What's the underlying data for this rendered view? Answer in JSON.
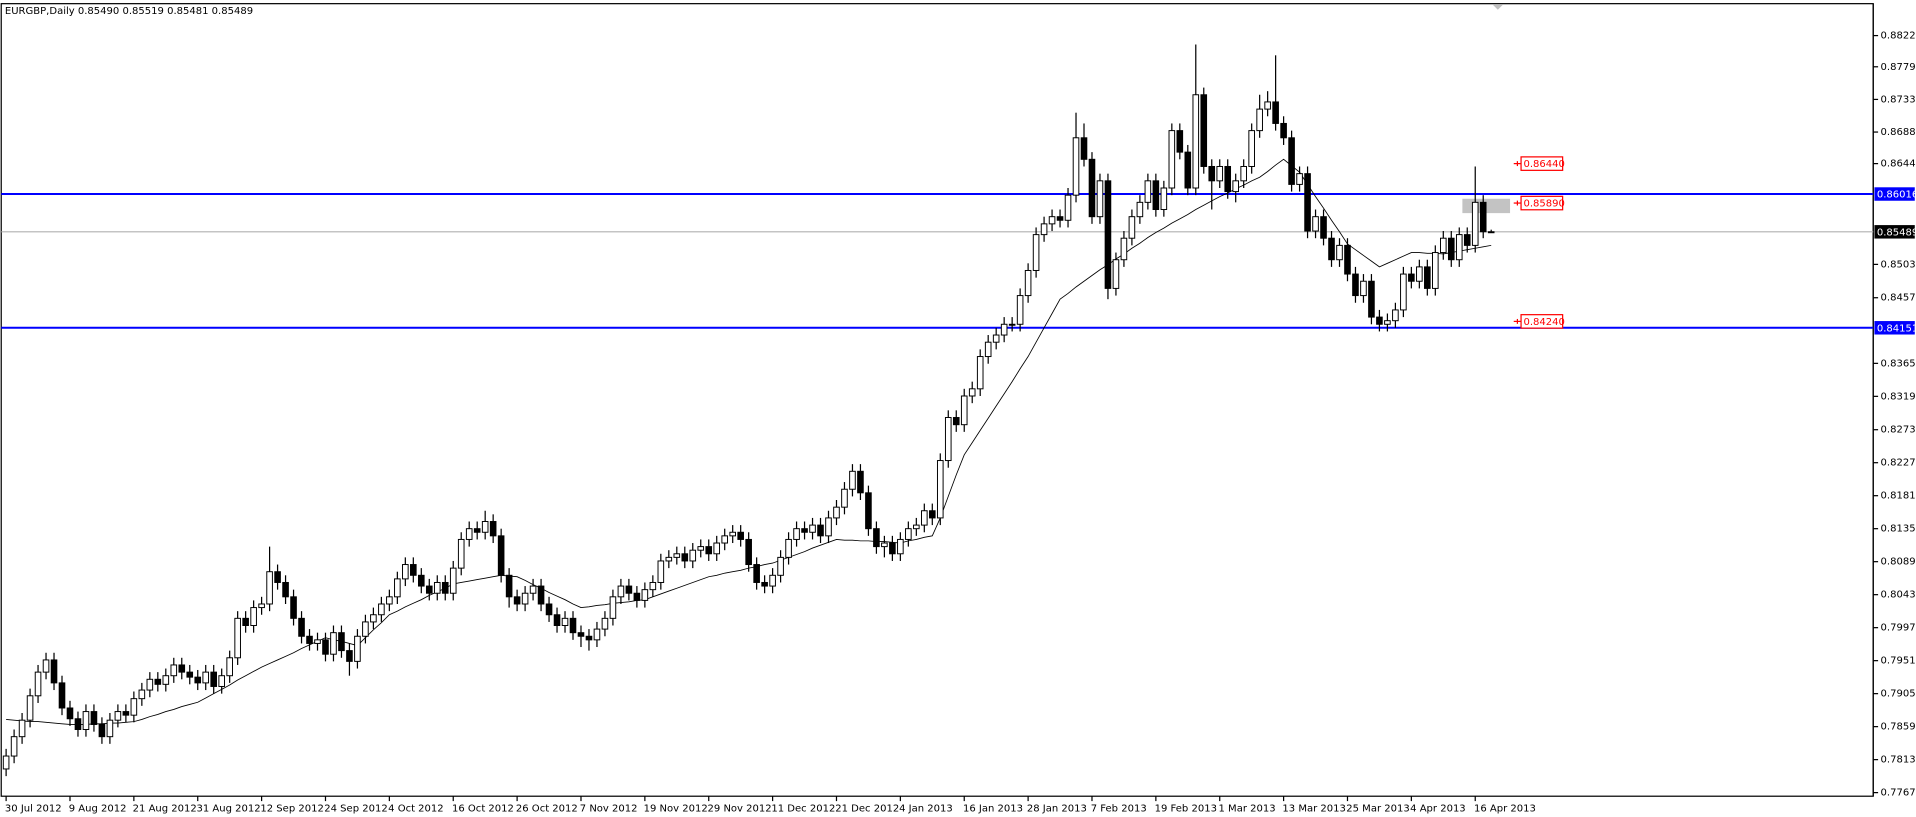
{
  "chart_data": {
    "type": "candlestick",
    "title": "EURGBP,Daily  0.85490 0.85519 0.85481 0.85489",
    "categories": [
      "30 Jul 2012",
      null,
      null,
      null,
      null,
      null,
      null,
      null,
      "9 Aug 2012",
      null,
      null,
      null,
      null,
      null,
      null,
      null,
      "21 Aug 2012",
      null,
      null,
      null,
      null,
      null,
      null,
      null,
      "31 Aug 2012",
      null,
      null,
      null,
      null,
      null,
      null,
      null,
      "12 Sep 2012",
      null,
      null,
      null,
      null,
      null,
      null,
      null,
      "24 Sep 2012",
      null,
      null,
      null,
      null,
      null,
      null,
      null,
      "4 Oct 2012",
      null,
      null,
      null,
      null,
      null,
      null,
      null,
      "16 Oct 2012",
      null,
      null,
      null,
      null,
      null,
      null,
      null,
      "26 Oct 2012",
      null,
      null,
      null,
      null,
      null,
      null,
      null,
      "7 Nov 2012",
      null,
      null,
      null,
      null,
      null,
      null,
      null,
      "19 Nov 2012",
      null,
      null,
      null,
      null,
      null,
      null,
      null,
      "29 Nov 2012",
      null,
      null,
      null,
      null,
      null,
      null,
      null,
      "11 Dec 2012",
      null,
      null,
      null,
      null,
      null,
      null,
      null,
      "21 Dec 2012",
      null,
      null,
      null,
      null,
      null,
      null,
      null,
      "4 Jan 2013",
      null,
      null,
      null,
      null,
      null,
      null,
      null,
      "16 Jan 2013",
      null,
      null,
      null,
      null,
      null,
      null,
      null,
      "28 Jan 2013",
      null,
      null,
      null,
      null,
      null,
      null,
      null,
      "7 Feb 2013",
      null,
      null,
      null,
      null,
      null,
      null,
      null,
      "19 Feb 2013",
      null,
      null,
      null,
      null,
      null,
      null,
      null,
      "1 Mar 2013",
      null,
      null,
      null,
      null,
      null,
      null,
      null,
      "13 Mar 2013",
      null,
      null,
      null,
      null,
      null,
      null,
      null,
      "25 Mar 2013",
      null,
      null,
      null,
      null,
      null,
      null,
      null,
      "4 Apr 2013",
      null,
      null,
      null,
      null,
      null,
      null,
      null,
      "16 Apr 2013",
      null,
      null
    ],
    "open": [
      0.78,
      0.7818,
      0.7845,
      0.7868,
      0.7902,
      0.7935,
      0.7952,
      0.792,
      0.7885,
      0.787,
      0.7855,
      0.788,
      0.7862,
      0.7845,
      0.7868,
      0.788,
      0.7875,
      0.7898,
      0.791,
      0.7925,
      0.7918,
      0.793,
      0.7945,
      0.7935,
      0.7928,
      0.792,
      0.7935,
      0.7915,
      0.793,
      0.7955,
      0.801,
      0.8,
      0.8025,
      0.803,
      0.8075,
      0.806,
      0.804,
      0.801,
      0.7985,
      0.7975,
      0.798,
      0.796,
      0.799,
      0.7965,
      0.795,
      0.7985,
      0.8005,
      0.8015,
      0.803,
      0.804,
      0.8065,
      0.8085,
      0.807,
      0.8055,
      0.8045,
      0.806,
      0.8045,
      0.808,
      0.812,
      0.8135,
      0.813,
      0.8145,
      0.8125,
      0.807,
      0.804,
      0.803,
      0.8045,
      0.8055,
      0.803,
      0.8015,
      0.8,
      0.801,
      0.799,
      0.7985,
      0.798,
      0.7995,
      0.801,
      0.804,
      0.8055,
      0.8045,
      0.8035,
      0.805,
      0.806,
      0.809,
      0.8095,
      0.81,
      0.809,
      0.8105,
      0.811,
      0.81,
      0.8115,
      0.8125,
      0.813,
      0.812,
      0.8085,
      0.806,
      0.8055,
      0.807,
      0.8095,
      0.812,
      0.8135,
      0.813,
      0.814,
      0.8125,
      0.815,
      0.8165,
      0.819,
      0.8215,
      0.8185,
      0.8135,
      0.811,
      0.8115,
      0.81,
      0.812,
      0.8135,
      0.814,
      0.816,
      0.815,
      0.823,
      0.829,
      0.828,
      0.832,
      0.833,
      0.8375,
      0.8395,
      0.8405,
      0.842,
      0.842,
      0.846,
      0.8495,
      0.8545,
      0.856,
      0.857,
      0.8565,
      0.86,
      0.868,
      0.865,
      0.857,
      0.862,
      0.847,
      0.851,
      0.854,
      0.857,
      0.859,
      0.862,
      0.858,
      0.861,
      0.869,
      0.866,
      0.861,
      0.874,
      0.864,
      0.862,
      0.864,
      0.8605,
      0.862,
      0.864,
      0.869,
      0.872,
      0.873,
      0.87,
      0.868,
      0.8615,
      0.863,
      0.855,
      0.857,
      0.854,
      0.851,
      0.853,
      0.849,
      0.846,
      0.848,
      0.843,
      0.842,
      0.8425,
      0.844,
      0.849,
      0.848,
      0.85,
      0.847,
      0.852,
      0.854,
      0.851,
      0.8545,
      0.853,
      0.859,
      0.8549
    ],
    "high": [
      0.7828,
      0.7855,
      0.7878,
      0.7912,
      0.7945,
      0.7962,
      0.7962,
      0.793,
      0.7895,
      0.788,
      0.789,
      0.789,
      0.7872,
      0.7878,
      0.789,
      0.789,
      0.7908,
      0.792,
      0.7935,
      0.7935,
      0.794,
      0.7955,
      0.7955,
      0.7945,
      0.7938,
      0.7945,
      0.7945,
      0.794,
      0.7965,
      0.802,
      0.802,
      0.8035,
      0.804,
      0.811,
      0.8085,
      0.807,
      0.805,
      0.802,
      0.7995,
      0.799,
      0.799,
      0.8,
      0.8,
      0.7975,
      0.7995,
      0.8015,
      0.8025,
      0.804,
      0.805,
      0.8075,
      0.8095,
      0.8095,
      0.808,
      0.8065,
      0.807,
      0.807,
      0.809,
      0.813,
      0.8145,
      0.8145,
      0.816,
      0.8155,
      0.8135,
      0.808,
      0.805,
      0.8055,
      0.8065,
      0.8065,
      0.804,
      0.8025,
      0.802,
      0.802,
      0.8,
      0.7995,
      0.8005,
      0.802,
      0.805,
      0.8065,
      0.8065,
      0.8055,
      0.806,
      0.807,
      0.81,
      0.8105,
      0.811,
      0.811,
      0.8115,
      0.812,
      0.812,
      0.8125,
      0.8135,
      0.814,
      0.814,
      0.813,
      0.8095,
      0.807,
      0.808,
      0.8105,
      0.813,
      0.8145,
      0.8145,
      0.815,
      0.815,
      0.816,
      0.8175,
      0.82,
      0.8225,
      0.8225,
      0.8195,
      0.8145,
      0.8125,
      0.8125,
      0.813,
      0.8145,
      0.815,
      0.817,
      0.817,
      0.824,
      0.83,
      0.83,
      0.833,
      0.834,
      0.8385,
      0.8405,
      0.8415,
      0.843,
      0.843,
      0.847,
      0.8505,
      0.8555,
      0.857,
      0.858,
      0.858,
      0.861,
      0.8715,
      0.87,
      0.866,
      0.863,
      0.863,
      0.852,
      0.855,
      0.858,
      0.86,
      0.863,
      0.863,
      0.862,
      0.87,
      0.87,
      0.867,
      0.881,
      0.875,
      0.865,
      0.865,
      0.865,
      0.863,
      0.865,
      0.87,
      0.874,
      0.8745,
      0.8795,
      0.871,
      0.869,
      0.864,
      0.864,
      0.858,
      0.858,
      0.855,
      0.854,
      0.854,
      0.85,
      0.849,
      0.849,
      0.844,
      0.8435,
      0.845,
      0.85,
      0.85,
      0.851,
      0.851,
      0.853,
      0.855,
      0.855,
      0.8555,
      0.8555,
      0.864,
      0.86,
      0.85519
    ],
    "low": [
      0.779,
      0.7808,
      0.7835,
      0.7858,
      0.7892,
      0.7925,
      0.791,
      0.7875,
      0.786,
      0.7845,
      0.7845,
      0.7852,
      0.7835,
      0.7835,
      0.7858,
      0.7865,
      0.7865,
      0.7888,
      0.79,
      0.7908,
      0.7908,
      0.792,
      0.7925,
      0.7918,
      0.791,
      0.791,
      0.7905,
      0.7905,
      0.792,
      0.7945,
      0.799,
      0.799,
      0.8015,
      0.802,
      0.805,
      0.803,
      0.8,
      0.7975,
      0.7965,
      0.7965,
      0.795,
      0.795,
      0.7955,
      0.793,
      0.794,
      0.7975,
      0.7995,
      0.8005,
      0.802,
      0.803,
      0.8055,
      0.806,
      0.8045,
      0.8035,
      0.8035,
      0.8035,
      0.8035,
      0.807,
      0.811,
      0.812,
      0.812,
      0.8115,
      0.806,
      0.8025,
      0.802,
      0.802,
      0.8035,
      0.802,
      0.8005,
      0.799,
      0.799,
      0.798,
      0.797,
      0.7965,
      0.797,
      0.7985,
      0.8,
      0.803,
      0.8035,
      0.8025,
      0.8025,
      0.804,
      0.805,
      0.808,
      0.8085,
      0.808,
      0.808,
      0.8095,
      0.809,
      0.809,
      0.8105,
      0.8115,
      0.811,
      0.8075,
      0.805,
      0.8045,
      0.8045,
      0.806,
      0.8085,
      0.811,
      0.812,
      0.812,
      0.8115,
      0.8115,
      0.814,
      0.8155,
      0.818,
      0.8175,
      0.8125,
      0.81,
      0.8095,
      0.809,
      0.809,
      0.811,
      0.8125,
      0.813,
      0.814,
      0.814,
      0.822,
      0.827,
      0.827,
      0.831,
      0.832,
      0.8365,
      0.8385,
      0.8395,
      0.841,
      0.841,
      0.845,
      0.8485,
      0.8535,
      0.855,
      0.8555,
      0.8555,
      0.859,
      0.864,
      0.856,
      0.856,
      0.8455,
      0.846,
      0.85,
      0.853,
      0.856,
      0.858,
      0.857,
      0.857,
      0.86,
      0.865,
      0.86,
      0.86,
      0.863,
      0.858,
      0.861,
      0.8595,
      0.859,
      0.861,
      0.863,
      0.868,
      0.871,
      0.869,
      0.867,
      0.8605,
      0.8605,
      0.854,
      0.854,
      0.853,
      0.85,
      0.85,
      0.848,
      0.845,
      0.845,
      0.842,
      0.841,
      0.841,
      0.8415,
      0.843,
      0.847,
      0.847,
      0.846,
      0.846,
      0.851,
      0.85,
      0.85,
      0.852,
      0.852,
      0.854,
      0.85481
    ],
    "close": [
      0.7818,
      0.7845,
      0.7868,
      0.7902,
      0.7935,
      0.7952,
      0.792,
      0.7885,
      0.787,
      0.7855,
      0.788,
      0.7862,
      0.7845,
      0.7868,
      0.788,
      0.7875,
      0.7898,
      0.791,
      0.7925,
      0.7918,
      0.793,
      0.7945,
      0.7935,
      0.7928,
      0.792,
      0.7935,
      0.7915,
      0.793,
      0.7955,
      0.801,
      0.8,
      0.8025,
      0.803,
      0.8075,
      0.806,
      0.804,
      0.801,
      0.7985,
      0.7975,
      0.798,
      0.796,
      0.799,
      0.7965,
      0.795,
      0.7985,
      0.8005,
      0.8015,
      0.803,
      0.804,
      0.8065,
      0.8085,
      0.807,
      0.8055,
      0.8045,
      0.806,
      0.8045,
      0.808,
      0.812,
      0.8135,
      0.813,
      0.8145,
      0.8125,
      0.807,
      0.804,
      0.803,
      0.8045,
      0.8055,
      0.803,
      0.8015,
      0.8,
      0.801,
      0.799,
      0.7985,
      0.798,
      0.7995,
      0.801,
      0.804,
      0.8055,
      0.8045,
      0.8035,
      0.805,
      0.806,
      0.809,
      0.8095,
      0.81,
      0.809,
      0.8105,
      0.811,
      0.81,
      0.8115,
      0.8125,
      0.813,
      0.812,
      0.8085,
      0.806,
      0.8055,
      0.807,
      0.8095,
      0.812,
      0.8135,
      0.813,
      0.814,
      0.8125,
      0.815,
      0.8165,
      0.819,
      0.8215,
      0.8185,
      0.8135,
      0.811,
      0.8115,
      0.81,
      0.812,
      0.8135,
      0.814,
      0.816,
      0.815,
      0.823,
      0.829,
      0.828,
      0.832,
      0.833,
      0.8375,
      0.8395,
      0.8405,
      0.842,
      0.842,
      0.846,
      0.8495,
      0.8545,
      0.856,
      0.857,
      0.8565,
      0.86,
      0.868,
      0.865,
      0.857,
      0.862,
      0.847,
      0.851,
      0.854,
      0.857,
      0.859,
      0.862,
      0.858,
      0.861,
      0.869,
      0.866,
      0.861,
      0.874,
      0.864,
      0.862,
      0.864,
      0.8605,
      0.862,
      0.864,
      0.869,
      0.872,
      0.873,
      0.87,
      0.868,
      0.8615,
      0.863,
      0.855,
      0.857,
      0.854,
      0.851,
      0.853,
      0.849,
      0.846,
      0.848,
      0.843,
      0.842,
      0.8425,
      0.844,
      0.849,
      0.848,
      0.85,
      0.847,
      0.852,
      0.854,
      0.851,
      0.8545,
      0.853,
      0.859,
      0.8549,
      0.85489
    ],
    "ma": [
      0.7869,
      0.7868,
      0.7867,
      0.7866,
      0.7866,
      0.7865,
      0.7864,
      0.7863,
      0.7862,
      0.7862,
      0.7862,
      0.7863,
      0.7863,
      0.7864,
      0.7864,
      0.7865,
      0.7866,
      0.7869,
      0.7873,
      0.7876,
      0.788,
      0.7883,
      0.7887,
      0.789,
      0.7893,
      0.7899,
      0.7905,
      0.7911,
      0.7917,
      0.7924,
      0.793,
      0.7936,
      0.7942,
      0.7947,
      0.7952,
      0.7957,
      0.7962,
      0.7968,
      0.7973,
      0.7978,
      0.7983,
      0.798,
      0.7978,
      0.7975,
      0.7972,
      0.7983,
      0.7994,
      0.8004,
      0.8015,
      0.802,
      0.8026,
      0.8031,
      0.8036,
      0.8042,
      0.8047,
      0.8052,
      0.8058,
      0.806,
      0.8062,
      0.8064,
      0.8066,
      0.8068,
      0.807,
      0.8069,
      0.8068,
      0.8063,
      0.8057,
      0.8052,
      0.8046,
      0.8041,
      0.8036,
      0.803,
      0.8025,
      0.8026,
      0.8028,
      0.8029,
      0.8031,
      0.8032,
      0.8033,
      0.8035,
      0.8036,
      0.804,
      0.8044,
      0.8048,
      0.8052,
      0.8056,
      0.806,
      0.8064,
      0.8068,
      0.807,
      0.8073,
      0.8075,
      0.8077,
      0.808,
      0.8082,
      0.8085,
      0.8087,
      0.8091,
      0.8095,
      0.8099,
      0.8103,
      0.8108,
      0.8112,
      0.8116,
      0.812,
      0.8119,
      0.8119,
      0.8118,
      0.8118,
      0.8117,
      0.8117,
      0.8116,
      0.8115,
      0.8118,
      0.812,
      0.8123,
      0.8125,
      0.815,
      0.818,
      0.821,
      0.8238,
      0.8255,
      0.8272,
      0.8289,
      0.8306,
      0.8323,
      0.834,
      0.8358,
      0.8375,
      0.8395,
      0.8415,
      0.8435,
      0.8455,
      0.8463,
      0.8472,
      0.848,
      0.8488,
      0.8496,
      0.8503,
      0.8511,
      0.8518,
      0.8526,
      0.8533,
      0.8541,
      0.8548,
      0.8554,
      0.8561,
      0.8567,
      0.8573,
      0.858,
      0.8586,
      0.8592,
      0.8598,
      0.8603,
      0.8609,
      0.8614,
      0.862,
      0.8625,
      0.8633,
      0.8642,
      0.865,
      0.8641,
      0.8632,
      0.8615,
      0.8598,
      0.8582,
      0.8565,
      0.8549,
      0.8532,
      0.8524,
      0.8516,
      0.8508,
      0.85,
      0.8505,
      0.851,
      0.8515,
      0.852,
      0.852,
      0.8519,
      0.8519,
      0.8518,
      0.852,
      0.8522,
      0.8524,
      0.8526,
      0.8528,
      0.853
    ],
    "up_color": "#ffffff",
    "down_color": "#000000",
    "ma_color": "#000000",
    "ylim": [
      0.7762,
      0.8867
    ],
    "yticks": [
      0.88225,
      {
        "value": 0.8779,
        "label": "0.87790"
      },
      0.87335,
      {
        "value": 0.8688,
        "label": "0.86880"
      },
      {
        "value": 0.8644,
        "label": "0.86440"
      },
      0.85035,
      {
        "value": 0.8457,
        "label": "0.84570"
      },
      0.83655,
      0.83195,
      {
        "value": 0.8273,
        "label": "0.82730"
      },
      {
        "value": 0.8227,
        "label": "0.82270"
      },
      {
        "value": 0.8181,
        "label": "0.81810"
      },
      {
        "value": 0.8135,
        "label": "0.81350"
      },
      {
        "value": 0.8089,
        "label": "0.80890"
      },
      {
        "value": 0.8043,
        "label": "0.80430"
      },
      {
        "value": 0.7997,
        "label": "0.79970"
      },
      {
        "value": 0.7951,
        "label": "0.79510"
      },
      {
        "value": 0.7905,
        "label": "0.79050"
      },
      {
        "value": 0.7859,
        "label": "0.78590"
      },
      {
        "value": 0.7813,
        "label": "0.78130"
      },
      {
        "value": 0.7767,
        "label": "0.77670"
      }
    ],
    "grid": false,
    "hlines": [
      {
        "value": 0.86016
      },
      {
        "value": 0.84151
      }
    ],
    "hline_color": "#0000ff",
    "price_labels": [
      {
        "value": 0.8644,
        "label": "0.86440"
      },
      {
        "value": 0.8589,
        "label": "0.85890"
      },
      {
        "value": 0.8424,
        "label": "0.84240"
      }
    ],
    "price_label_color": "#ff0000",
    "box": [
      0.8575,
      0.8595
    ]
  }
}
